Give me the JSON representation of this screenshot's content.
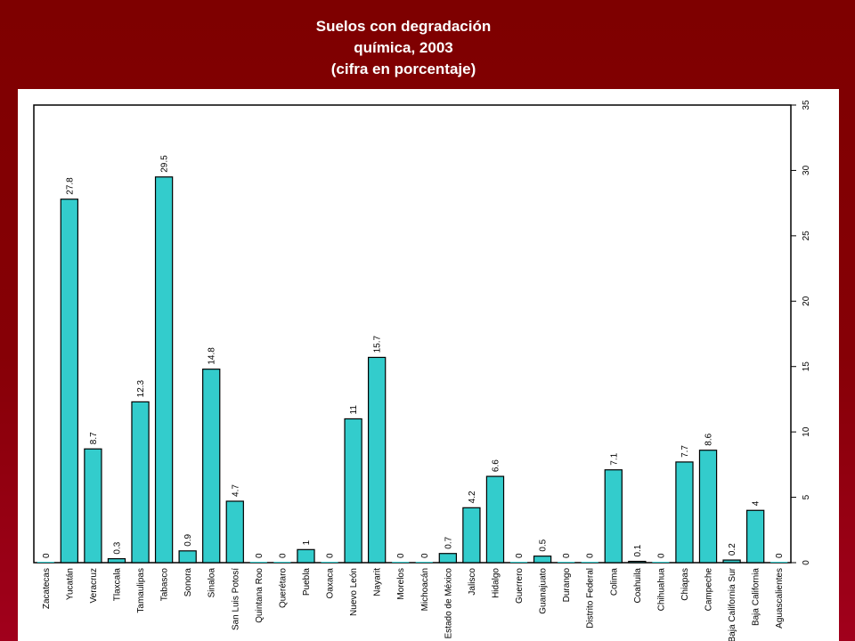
{
  "title_lines": [
    "Suelos con degradación",
    "química, 2003",
    "(cifra en porcentaje)"
  ],
  "chart_data": {
    "type": "bar",
    "title": "Suelos con degradación química, 2003 (cifra en porcentaje)",
    "categories": [
      "Zacatecas",
      "Yucatán",
      "Veracruz",
      "Tlaxcala",
      "Tamaulipas",
      "Tabasco",
      "Sonora",
      "Sinaloa",
      "San Luis Potosí",
      "Quintana Roo",
      "Querétaro",
      "Puebla",
      "Oaxaca",
      "Nuevo León",
      "Nayarit",
      "Morelos",
      "Michoacán",
      "Estado de México",
      "Jalisco",
      "Hidalgo",
      "Guerrero",
      "Guanajuato",
      "Durango",
      "Distrito Federal",
      "Colima",
      "Coahuila",
      "Chihuahua",
      "Chiapas",
      "Campeche",
      "Baja California Sur",
      "Baja California",
      "Aguascalientes"
    ],
    "values": [
      0,
      27.8,
      8.7,
      0.3,
      12.3,
      29.5,
      0.9,
      14.8,
      4.7,
      0,
      0,
      1,
      0,
      11,
      15.7,
      0,
      0,
      0.7,
      4.2,
      6.6,
      0,
      0.5,
      0,
      0,
      7.1,
      0.1,
      0,
      7.7,
      8.6,
      0.2,
      4,
      0
    ],
    "value_labels": [
      "0",
      "27.8",
      "8.7",
      "0.3",
      "12.3",
      "29.5",
      "0.9",
      "14.8",
      "4.7",
      "0",
      "0",
      "1",
      "0",
      "11",
      "15.7",
      "0",
      "0",
      "0.7",
      "4.2",
      "6.6",
      "0",
      "0.5",
      "0",
      "0",
      "7.1",
      "0.1",
      "0",
      "7.7",
      "8.6",
      "0.2",
      "4",
      "0"
    ],
    "ylim": [
      0,
      35
    ],
    "yticks": [
      0,
      5,
      10,
      15,
      20,
      25,
      30,
      35
    ],
    "y_axis_side": "right",
    "grid": false,
    "bar_color": "#33cccc",
    "bar_edge_color": "#000000",
    "orientation": "rotated -90°"
  }
}
